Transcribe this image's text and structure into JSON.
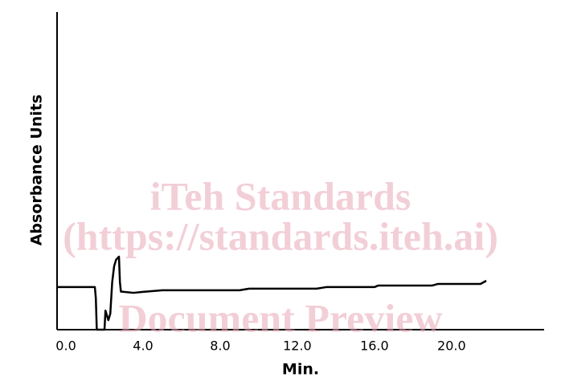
{
  "chart_data": {
    "type": "line",
    "x_label": "Min.",
    "y_label": "Absorbance Units",
    "annotations": [
      "iTeh Standards",
      "(https://standards.iteh.ai)",
      "Document Preview"
    ],
    "x": [
      -0.45,
      1.5,
      1.55,
      1.6,
      2.0,
      2.05,
      2.2,
      2.3,
      2.4,
      2.5,
      2.6,
      2.75,
      2.8,
      2.85,
      3.5,
      4.0,
      5.0,
      9.0,
      9.5,
      13.0,
      13.5,
      16.0,
      16.2,
      19.0,
      19.3,
      21.5,
      21.8
    ],
    "series": [
      {
        "color": "#000000",
        "values": [
          13.4,
          13.4,
          10,
          0,
          0,
          6,
          3,
          5,
          15,
          20,
          22,
          23,
          15,
          12,
          11.6,
          11.9,
          12.4,
          12.4,
          12.9,
          12.9,
          13.4,
          13.4,
          13.9,
          13.9,
          14.4,
          14.4,
          15.4
        ]
      }
    ],
    "xlim": [
      -0.46,
      24.8
    ],
    "ylim": [
      0,
      100
    ],
    "xticks": [
      {
        "value": 0,
        "label": "0.0"
      },
      {
        "value": 4,
        "label": "4.0"
      },
      {
        "value": 8,
        "label": "8.0"
      },
      {
        "value": 12,
        "label": "12.0"
      },
      {
        "value": 16,
        "label": "16.0"
      },
      {
        "value": 20,
        "label": "20.0"
      }
    ]
  }
}
